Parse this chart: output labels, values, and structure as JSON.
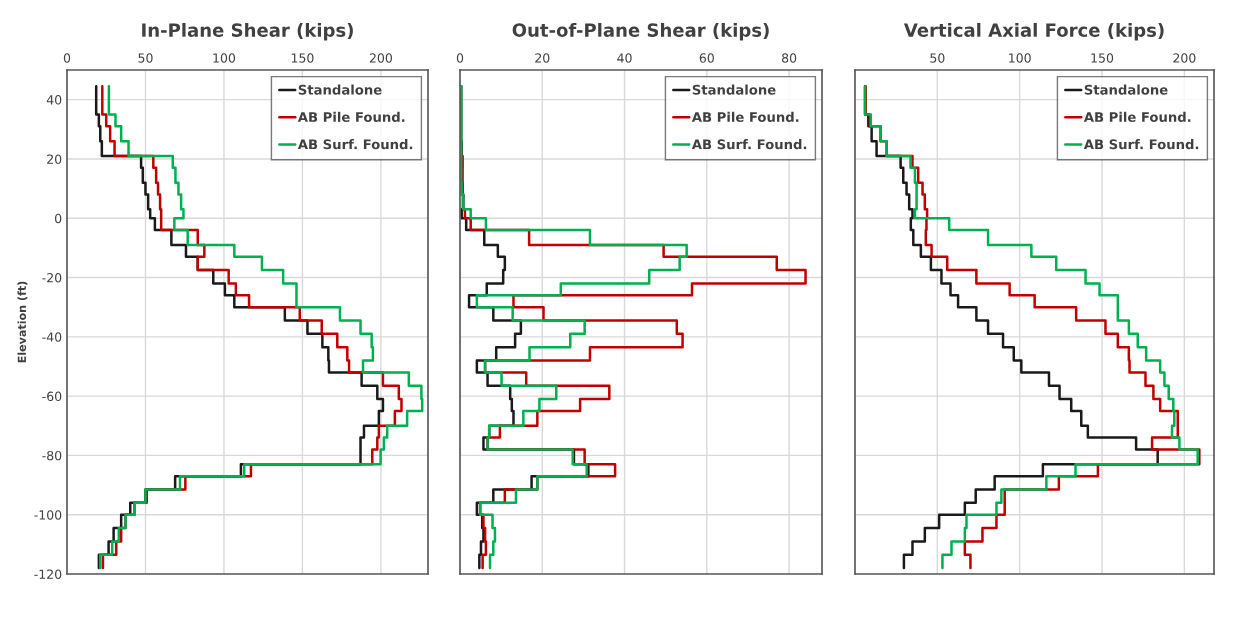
{
  "chart_data": [
    {
      "type": "step",
      "title": "In-Plane Shear (kips)",
      "ylabel": "Elevation (ft)",
      "xlim": [
        0,
        230
      ],
      "xticks": [
        0,
        50,
        100,
        150,
        200
      ],
      "ylim": [
        -120,
        50
      ],
      "yticks": [
        -120,
        -100,
        -80,
        -60,
        -40,
        -20,
        0,
        20,
        40
      ],
      "grid": true,
      "legend": "top right",
      "series": [
        {
          "name": "Standalone",
          "color": "#1a1a1a",
          "x": [
            18.6,
            20.3,
            21.2,
            22.2,
            47.2,
            48.3,
            50,
            51.7,
            53,
            56,
            66.5,
            75.8,
            83.3,
            93.2,
            100.6,
            106.6,
            138.8,
            153.2,
            162.7,
            166.5,
            166.9,
            187.7,
            197.7,
            201.3,
            198.7,
            189.2,
            187,
            187,
            110.8,
            68.9,
            50,
            40.3,
            34.5,
            29.7,
            26.5,
            20.3,
            20.3
          ],
          "values": [
            44.5,
            35,
            31,
            26,
            21,
            17,
            12,
            8,
            3,
            0,
            -4,
            -9,
            -13,
            -17.5,
            -22,
            -26,
            -30,
            -34.5,
            -39,
            -43.5,
            -48,
            -52,
            -56.5,
            -61,
            -65,
            -70,
            -74,
            -78,
            -83,
            -87,
            -91.5,
            -96,
            -100,
            -104.5,
            -109,
            -113.5,
            -118
          ]
        },
        {
          "name": "AB Pile Found.",
          "color": "#c00000",
          "x": [
            22.5,
            25,
            27.5,
            30.3,
            55,
            56.8,
            58,
            59.3,
            60,
            60,
            83.3,
            87.5,
            83.3,
            103,
            107.6,
            116,
            148.3,
            162.3,
            172.2,
            178.6,
            179.7,
            201.3,
            211.4,
            213.1,
            208.9,
            198.7,
            197.7,
            194.5,
            117.2,
            75.4,
            50.8,
            43,
            37.3,
            34.5,
            31.4,
            22.9,
            22.9
          ],
          "values": [
            44.5,
            35,
            31,
            26,
            21,
            17,
            12,
            8,
            3,
            0,
            -4,
            -9,
            -13,
            -17.5,
            -22,
            -26,
            -30,
            -34.5,
            -39,
            -43.5,
            -48,
            -52,
            -56.5,
            -61,
            -65,
            -70,
            -74,
            -78,
            -83,
            -87,
            -91.5,
            -96,
            -100,
            -104.5,
            -109,
            -113.5,
            -118
          ]
        },
        {
          "name": "AB Surf. Found.",
          "color": "#00b050",
          "x": [
            26.7,
            30.9,
            34.5,
            39.2,
            67.4,
            69.1,
            71,
            72.7,
            74.2,
            68.4,
            76.9,
            106.6,
            124.2,
            137.7,
            146.2,
            146.2,
            173.9,
            187,
            194.1,
            194.9,
            188.6,
            217.8,
            225.8,
            226.3,
            216.7,
            204,
            201.9,
            199.8,
            112.9,
            72,
            50,
            43,
            37.3,
            33,
            28.8,
            21.2,
            21.2
          ],
          "values": [
            44.5,
            35,
            31,
            26,
            21,
            17,
            12,
            8,
            3,
            0,
            -4,
            -9,
            -13,
            -17.5,
            -22,
            -26,
            -30,
            -34.5,
            -39,
            -43.5,
            -48,
            -52,
            -56.5,
            -61,
            -65,
            -70,
            -74,
            -78,
            -83,
            -87,
            -91.5,
            -96,
            -100,
            -104.5,
            -109,
            -113.5,
            -118
          ]
        }
      ]
    },
    {
      "type": "step",
      "title": "Out-of-Plane Shear (kips)",
      "xlim": [
        0,
        88
      ],
      "xticks": [
        0,
        20,
        40,
        60,
        80
      ],
      "ylim": [
        -120,
        50
      ],
      "yticks": [
        -120,
        -100,
        -80,
        -60,
        -40,
        -20,
        0,
        20,
        40
      ],
      "tick_labels": "x",
      "grid": true,
      "legend": "top right",
      "series": [
        {
          "name": "Standalone",
          "color": "#1a1a1a",
          "x": [
            0.3,
            0.3,
            0.3,
            0.4,
            0.6,
            0.5,
            0.6,
            0.8,
            0.4,
            1.5,
            5.9,
            9.2,
            10.9,
            10.5,
            6.5,
            2.2,
            8.1,
            14.8,
            13.4,
            8.8,
            4.1,
            6.7,
            12.2,
            12.6,
            13,
            7.1,
            5.7,
            27.7,
            31.2,
            17.4,
            8.1,
            4.1,
            5.4,
            5.7,
            5.1,
            4.7,
            4.7
          ],
          "values": [
            44.5,
            35,
            31,
            26,
            21,
            17,
            12,
            8,
            3,
            0,
            -4,
            -9,
            -13,
            -17.5,
            -22,
            -26,
            -30,
            -34.5,
            -39,
            -43.5,
            -48,
            -52,
            -56.5,
            -61,
            -65,
            -70,
            -74,
            -78,
            -83,
            -87,
            -91.5,
            -96,
            -100,
            -104.5,
            -109,
            -113.5,
            -118
          ]
        },
        {
          "name": "AB Pile Found.",
          "color": "#c00000",
          "x": [
            0.5,
            0.6,
            0.6,
            0.7,
            1.2,
            2.6,
            16.8,
            49.5,
            77,
            84,
            56.4,
            13,
            20.3,
            52.7,
            54.1,
            31.6,
            6.1,
            16.1,
            36.3,
            29.2,
            18.8,
            9.7,
            6.7,
            30.3,
            37.7,
            18.8,
            10.9,
            4.9,
            5.7,
            6.1,
            6.3,
            5.5,
            5.5
          ],
          "values": [
            21,
            17,
            12,
            8,
            3,
            0,
            -4,
            -9,
            -13,
            -17.5,
            -22,
            -26,
            -30,
            -34.5,
            -39,
            -43.5,
            -48,
            -52,
            -56.5,
            -61,
            -65,
            -70,
            -74,
            -78,
            -83,
            -87,
            -91.5,
            -96,
            -100,
            -104.5,
            -109,
            -113.5,
            -118
          ]
        },
        {
          "name": "AB Surf. Found.",
          "color": "#00b050",
          "x": [
            0.3,
            0.3,
            0.3,
            0.3,
            0.3,
            0.3,
            0.4,
            0.8,
            2.6,
            6.3,
            31.6,
            55.1,
            53.4,
            46,
            24.5,
            4.1,
            12.8,
            30.3,
            26.8,
            16.9,
            6.1,
            10.1,
            23.4,
            19.3,
            15.4,
            7.1,
            6.7,
            27.4,
            30.8,
            18.8,
            13.6,
            4.9,
            7.9,
            8.5,
            8.1,
            7.3,
            7.3
          ],
          "values": [
            44.5,
            35,
            31,
            26,
            21,
            17,
            12,
            8,
            3,
            0,
            -4,
            -9,
            -13,
            -17.5,
            -22,
            -26,
            -30,
            -34.5,
            -39,
            -43.5,
            -48,
            -52,
            -56.5,
            -61,
            -65,
            -70,
            -74,
            -78,
            -83,
            -87,
            -91.5,
            -96,
            -100,
            -104.5,
            -109,
            -113.5,
            -118
          ]
        }
      ]
    },
    {
      "type": "step",
      "title": "Vertical Axial Force (kips)",
      "xlim": [
        0,
        218
      ],
      "xticks": [
        50,
        100,
        150,
        200
      ],
      "ylim": [
        -120,
        50
      ],
      "yticks": [
        -120,
        -100,
        -80,
        -60,
        -40,
        -20,
        0,
        20,
        40
      ],
      "tick_labels": "x",
      "grid": true,
      "legend": "top right",
      "series": [
        {
          "name": "Standalone",
          "color": "#1a1a1a",
          "x": [
            6.1,
            8.1,
            10.1,
            13.1,
            27.7,
            29.3,
            31.3,
            32.9,
            34.9,
            33.9,
            35.4,
            40,
            46.1,
            52.5,
            58,
            62.6,
            73.7,
            80.8,
            89.9,
            96.4,
            101,
            117.8,
            124.2,
            131.3,
            137.4,
            141.4,
            170.7,
            183.8,
            114.1,
            84.8,
            73.3,
            66.7,
            51.1,
            42.4,
            34.9,
            29.7,
            29.7
          ],
          "values": [
            44.5,
            35,
            31,
            26,
            21,
            17,
            12,
            8,
            3,
            0,
            -4,
            -9,
            -13,
            -17.5,
            -22,
            -26,
            -30,
            -34.5,
            -39,
            -43.5,
            -48,
            -52,
            -56.5,
            -61,
            -65,
            -70,
            -74,
            -78,
            -83,
            -87,
            -91.5,
            -96,
            -100,
            -104.5,
            -109,
            -113.5,
            -118
          ]
        },
        {
          "name": "AB Pile Found.",
          "color": "#c00000",
          "x": [
            6.5,
            9,
            15.5,
            19.2,
            34.9,
            38.4,
            41,
            42.4,
            43.8,
            43.4,
            43,
            46.5,
            56,
            73.7,
            93.9,
            109.1,
            134.3,
            152.1,
            159.6,
            166.3,
            166.7,
            176.4,
            181.2,
            185.3,
            196,
            196,
            180.4,
            209.1,
            147.5,
            123.8,
            90.9,
            90.9,
            85.9,
            77.4,
            66.7,
            70.1,
            70.1
          ],
          "values": [
            44.5,
            35,
            31,
            26,
            21,
            17,
            12,
            8,
            3,
            0,
            -4,
            -9,
            -13,
            -17.5,
            -22,
            -26,
            -30,
            -34.5,
            -39,
            -43.5,
            -48,
            -52,
            -56.5,
            -61,
            -65,
            -70,
            -74,
            -78,
            -83,
            -87,
            -91.5,
            -96,
            -100,
            -104.5,
            -109,
            -113.5,
            -118
          ]
        },
        {
          "name": "AB Surf. Found.",
          "color": "#00b050",
          "x": [
            6.1,
            9.6,
            15.5,
            19.2,
            33.7,
            36.4,
            37.4,
            37.4,
            36.4,
            57.2,
            80.8,
            107.1,
            122.2,
            140,
            148.5,
            159.6,
            159.6,
            166.3,
            171.7,
            176.8,
            185.3,
            187.9,
            190.5,
            193.3,
            193.9,
            192.5,
            197,
            208.1,
            133.9,
            116.2,
            88.9,
            85.9,
            67.7,
            66.7,
            58.6,
            53.1,
            53.1
          ],
          "values": [
            44.5,
            35,
            31,
            26,
            21,
            17,
            12,
            8,
            3,
            0,
            -4,
            -9,
            -13,
            -17.5,
            -22,
            -26,
            -30,
            -34.5,
            -39,
            -43.5,
            -48,
            -52,
            -56.5,
            -61,
            -65,
            -70,
            -74,
            -78,
            -83,
            -87,
            -91.5,
            -96,
            -100,
            -104.5,
            -109,
            -113.5,
            -118
          ]
        }
      ]
    }
  ]
}
